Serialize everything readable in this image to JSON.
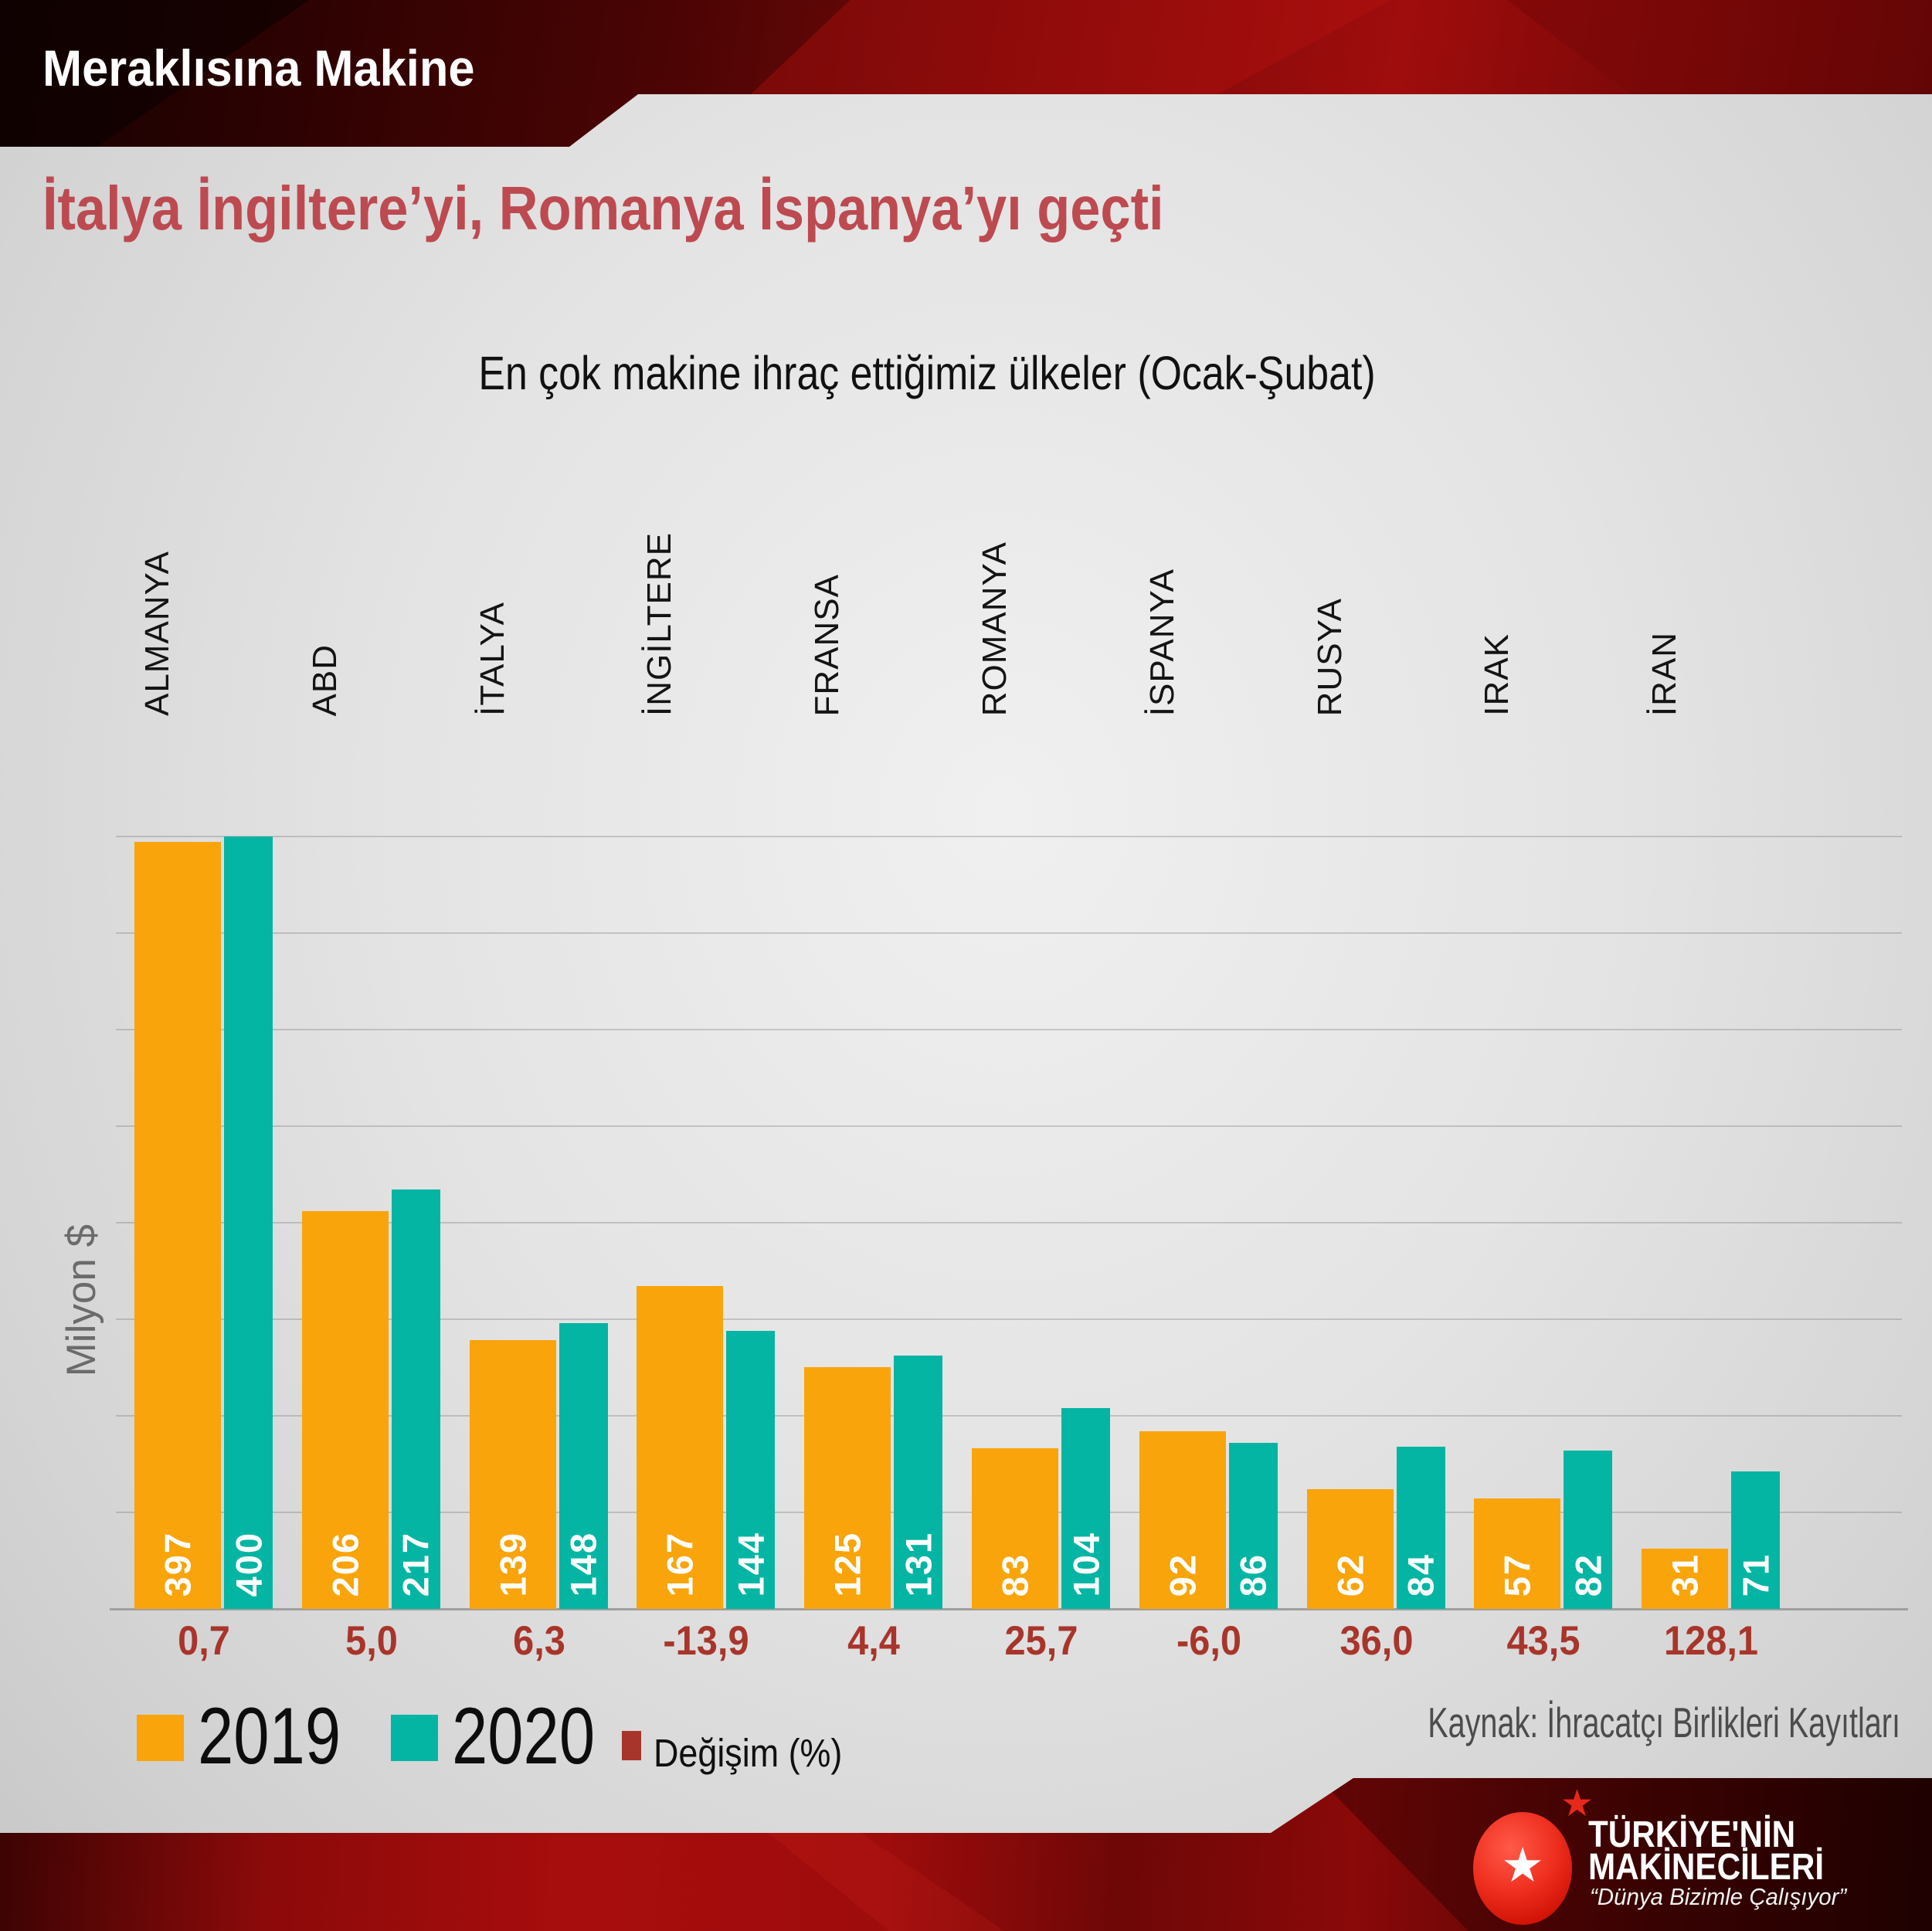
{
  "header": {
    "kicker": "Meraklısına Makine",
    "title": "İtalya İngiltere’yi, Romanya İspanya’yı geçti"
  },
  "chart_data": {
    "type": "bar",
    "title": "En çok makine ihraç ettiğimiz ülkeler (Ocak-Şubat)",
    "xlabel": "",
    "ylabel": "Milyon $",
    "ylim": [
      0,
      400
    ],
    "grid_step": 50,
    "grid": "on",
    "legend_position": "bottom-left",
    "categories": [
      "ALMANYA",
      "ABD",
      "İTALYA",
      "İNGİLTERE",
      "FRANSA",
      "ROMANYA",
      "İSPANYA",
      "RUSYA",
      "IRAK",
      "İRAN"
    ],
    "series": [
      {
        "name": "2019",
        "color": "#F9A40A",
        "values": [
          397,
          206,
          139,
          167,
          125,
          83,
          92,
          62,
          57,
          31
        ]
      },
      {
        "name": "2020",
        "color": "#04B5A3",
        "values": [
          400,
          217,
          148,
          144,
          131,
          104,
          86,
          84,
          82,
          71
        ]
      }
    ],
    "change": {
      "label": "Değişim (%)",
      "color": "#A8352B",
      "values": [
        "0,7",
        "5,0",
        "6,3",
        "-13,9",
        "4,4",
        "25,7",
        "-6,0",
        "36,0",
        "43,5",
        "128,1"
      ]
    }
  },
  "footer": {
    "source": "Kaynak: İhracatçı Birlikleri Kayıtları",
    "logo": {
      "line1": "TÜRKİYE'NİN",
      "line2": "MAKİNECİLERİ",
      "tagline": "“Dünya Bizimle Çalışıyor”"
    }
  },
  "palette": {
    "orange_2019": "#F9A40A",
    "teal_2020": "#04B5A3",
    "change_red": "#A8352B",
    "headline_red": "#BD4A51",
    "band_red": "#8C0A0A",
    "background_gray": "#E3E3E3"
  }
}
